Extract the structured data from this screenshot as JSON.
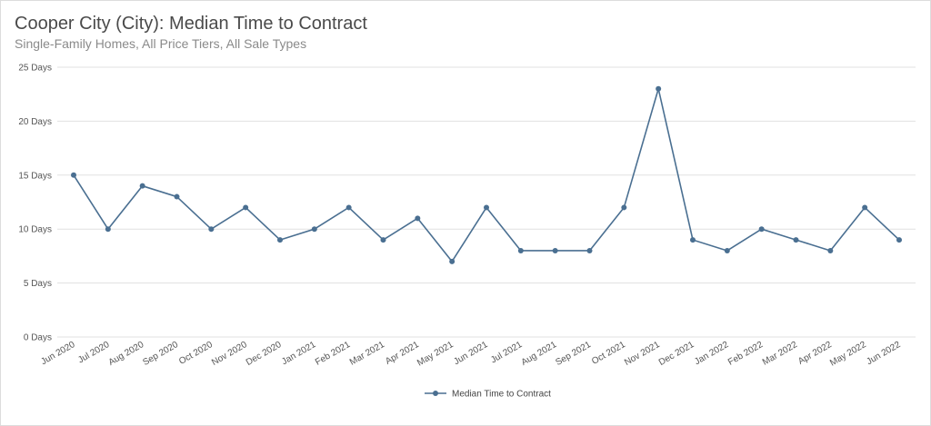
{
  "title": "Cooper City (City): Median Time to Contract",
  "subtitle": "Single-Family Homes, All Price Tiers, All Sale Types",
  "chart_data": {
    "type": "line",
    "title": "Cooper City (City): Median Time to Contract",
    "subtitle": "Single-Family Homes, All Price Tiers, All Sale Types",
    "categories": [
      "Jun 2020",
      "Jul 2020",
      "Aug 2020",
      "Sep 2020",
      "Oct 2020",
      "Nov 2020",
      "Dec 2020",
      "Jan 2021",
      "Feb 2021",
      "Mar 2021",
      "Apr 2021",
      "May 2021",
      "Jun 2021",
      "Jul 2021",
      "Aug 2021",
      "Sep 2021",
      "Oct 2021",
      "Nov 2021",
      "Dec 2021",
      "Jan 2022",
      "Feb 2022",
      "Mar 2022",
      "Apr 2022",
      "May 2022",
      "Jun 2022"
    ],
    "series": [
      {
        "name": "Median Time to Contract",
        "color": "#4a6f91",
        "values": [
          15,
          10,
          14,
          13,
          10,
          12,
          9,
          10,
          12,
          9,
          11,
          7,
          12,
          8,
          8,
          8,
          12,
          23,
          9,
          8,
          10,
          9,
          8,
          12,
          9
        ]
      }
    ],
    "ylim": [
      0,
      25
    ],
    "yticks": [
      0,
      5,
      10,
      15,
      20,
      25
    ],
    "ytick_labels": [
      "0 Days",
      "5 Days",
      "10 Days",
      "15 Days",
      "20 Days",
      "25 Days"
    ],
    "grid": true,
    "legend_position": "bottom-center"
  }
}
